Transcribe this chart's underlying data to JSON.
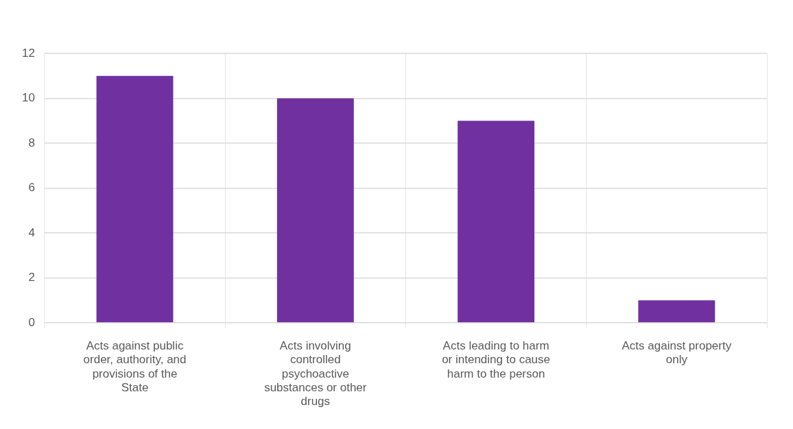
{
  "chart_data": {
    "type": "bar",
    "categories": [
      "Acts against public order, authority, and provisions of the State",
      "Acts involving controlled psychoactive substances or other drugs",
      "Acts leading to harm or intending to cause harm to the person",
      "Acts against property only"
    ],
    "values": [
      11,
      10,
      9,
      1
    ],
    "color": "#7030a0",
    "ylim": [
      0,
      12
    ],
    "yticks": [
      0,
      2,
      4,
      6,
      8,
      10,
      12
    ],
    "grid": true
  }
}
